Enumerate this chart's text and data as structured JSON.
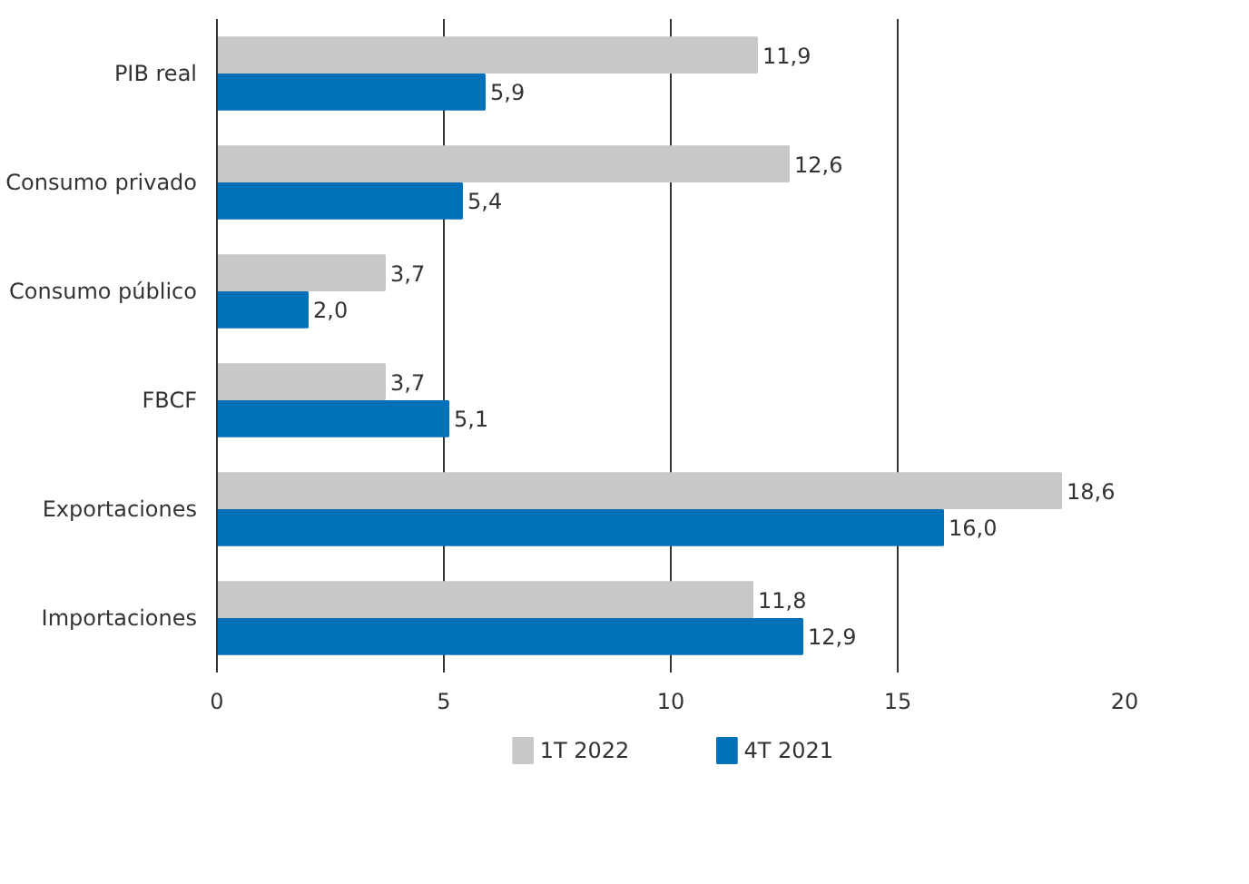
{
  "chart_data": {
    "type": "bar",
    "orientation": "horizontal",
    "categories": [
      "PIB real",
      "Consumo privado",
      "Consumo público",
      "FBCF",
      "Exportaciones",
      "Importaciones"
    ],
    "series": [
      {
        "name": "1T 2022",
        "color": "#c8c8c8",
        "values": [
          11.9,
          12.6,
          3.7,
          3.7,
          18.6,
          11.8
        ],
        "value_labels": [
          "11,9",
          "12,6",
          "3,7",
          "3,7",
          "18,6",
          "11,8"
        ]
      },
      {
        "name": "4T 2021",
        "color": "#0071b9",
        "values": [
          5.9,
          5.4,
          2.0,
          5.1,
          16.0,
          12.9
        ],
        "value_labels": [
          "5,9",
          "5,4",
          "2,0",
          "5,1",
          "16,0",
          "12,9"
        ]
      }
    ],
    "xlim": [
      0,
      20
    ],
    "xticks": [
      0,
      5,
      10,
      15,
      20
    ],
    "grid": "x",
    "legend": "bottom"
  }
}
